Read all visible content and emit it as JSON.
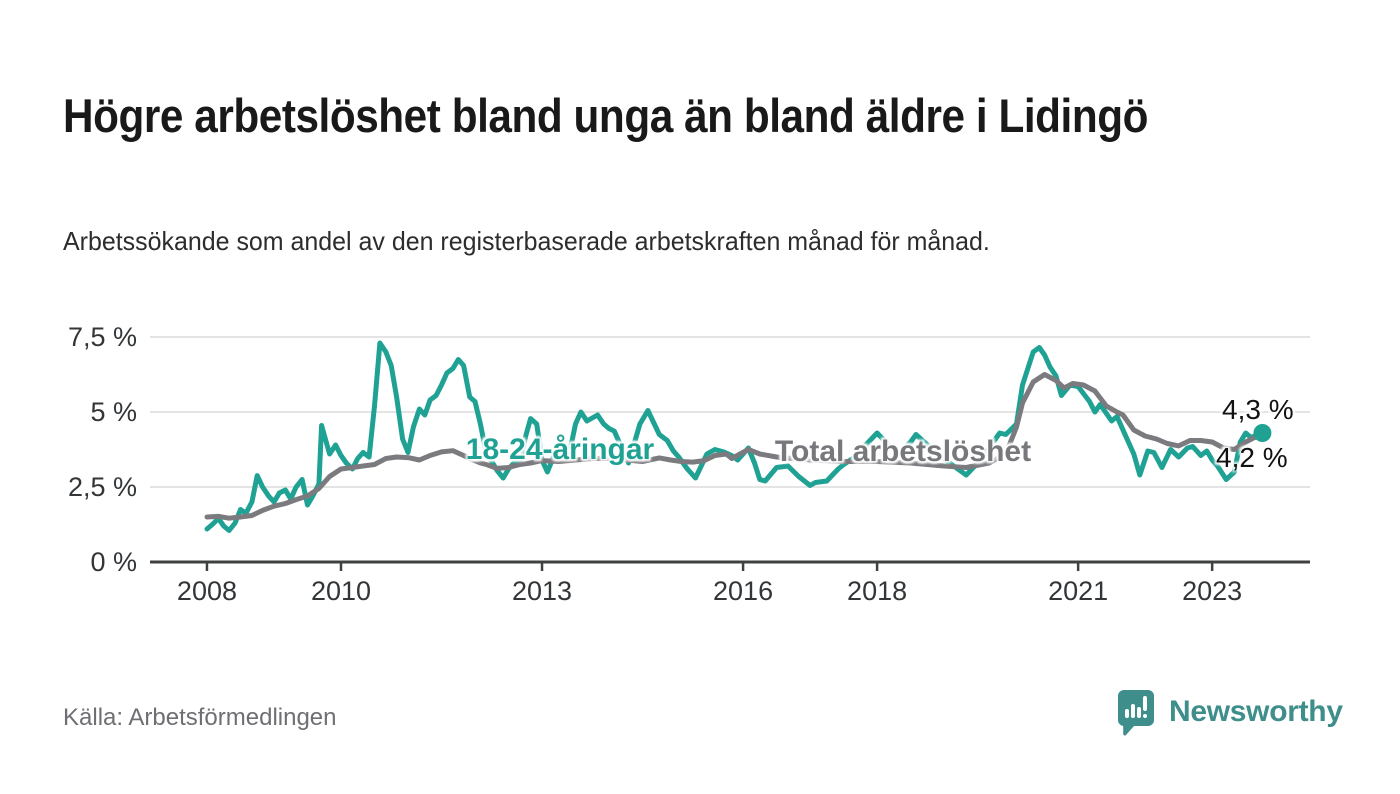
{
  "header": {
    "title": "Högre arbetslöshet bland unga än bland äldre i Lidingö",
    "subtitle": "Arbetssökande som andel av den registerbaserade arbetskraften månad för månad."
  },
  "chart_data": {
    "type": "line",
    "x_unit": "decimal_year",
    "xlim": [
      2007.15,
      2024.46
    ],
    "ylim": [
      0,
      7.5
    ],
    "grid": true,
    "legend_position": "inline-labels",
    "y_ticks": [
      {
        "v": 0,
        "label": "0 %"
      },
      {
        "v": 2.5,
        "label": "2,5 %"
      },
      {
        "v": 5,
        "label": "5 %"
      },
      {
        "v": 7.5,
        "label": "7,5 %"
      }
    ],
    "x_ticks": [
      {
        "v": 2008,
        "label": "2008"
      },
      {
        "v": 2010,
        "label": "2010"
      },
      {
        "v": 2013,
        "label": "2013"
      },
      {
        "v": 2016,
        "label": "2016"
      },
      {
        "v": 2018,
        "label": "2018"
      },
      {
        "v": 2021,
        "label": "2021"
      },
      {
        "v": 2023,
        "label": "2023"
      }
    ],
    "series": [
      {
        "name": "18-24-åringar",
        "label": "18-24-åringar",
        "color": "#1fa294",
        "end_label": "4,3 %",
        "end_value": 4.3,
        "points": [
          [
            2008.0,
            1.1
          ],
          [
            2008.08,
            1.25
          ],
          [
            2008.17,
            1.45
          ],
          [
            2008.25,
            1.2
          ],
          [
            2008.33,
            1.05
          ],
          [
            2008.42,
            1.3
          ],
          [
            2008.5,
            1.75
          ],
          [
            2008.58,
            1.62
          ],
          [
            2008.67,
            2.0
          ],
          [
            2008.75,
            2.88
          ],
          [
            2008.83,
            2.5
          ],
          [
            2008.92,
            2.2
          ],
          [
            2009.0,
            2.0
          ],
          [
            2009.08,
            2.3
          ],
          [
            2009.17,
            2.4
          ],
          [
            2009.25,
            2.1
          ],
          [
            2009.33,
            2.5
          ],
          [
            2009.42,
            2.75
          ],
          [
            2009.5,
            1.9
          ],
          [
            2009.58,
            2.2
          ],
          [
            2009.67,
            2.6
          ],
          [
            2009.71,
            4.55
          ],
          [
            2009.83,
            3.6
          ],
          [
            2009.92,
            3.9
          ],
          [
            2010.0,
            3.55
          ],
          [
            2010.08,
            3.3
          ],
          [
            2010.17,
            3.1
          ],
          [
            2010.25,
            3.45
          ],
          [
            2010.33,
            3.65
          ],
          [
            2010.42,
            3.5
          ],
          [
            2010.5,
            5.2
          ],
          [
            2010.58,
            7.3
          ],
          [
            2010.67,
            7.0
          ],
          [
            2010.75,
            6.55
          ],
          [
            2010.83,
            5.5
          ],
          [
            2010.92,
            4.1
          ],
          [
            2011.0,
            3.65
          ],
          [
            2011.08,
            4.5
          ],
          [
            2011.17,
            5.1
          ],
          [
            2011.25,
            4.9
          ],
          [
            2011.33,
            5.4
          ],
          [
            2011.42,
            5.55
          ],
          [
            2011.5,
            5.9
          ],
          [
            2011.58,
            6.3
          ],
          [
            2011.67,
            6.45
          ],
          [
            2011.75,
            6.75
          ],
          [
            2011.83,
            6.55
          ],
          [
            2011.92,
            5.5
          ],
          [
            2012.0,
            5.35
          ],
          [
            2012.08,
            4.6
          ],
          [
            2012.17,
            3.6
          ],
          [
            2012.25,
            3.35
          ],
          [
            2012.33,
            3.05
          ],
          [
            2012.42,
            2.8
          ],
          [
            2012.5,
            3.1
          ],
          [
            2012.58,
            3.3
          ],
          [
            2012.67,
            3.3
          ],
          [
            2012.75,
            4.15
          ],
          [
            2012.83,
            4.78
          ],
          [
            2012.92,
            4.6
          ],
          [
            2013.0,
            3.4
          ],
          [
            2013.08,
            3.0
          ],
          [
            2013.17,
            3.5
          ],
          [
            2013.25,
            3.45
          ],
          [
            2013.33,
            3.55
          ],
          [
            2013.42,
            3.75
          ],
          [
            2013.5,
            4.6
          ],
          [
            2013.58,
            5.0
          ],
          [
            2013.67,
            4.7
          ],
          [
            2013.83,
            4.9
          ],
          [
            2013.92,
            4.6
          ],
          [
            2014.0,
            4.45
          ],
          [
            2014.08,
            4.36
          ],
          [
            2014.17,
            3.9
          ],
          [
            2014.29,
            3.3
          ],
          [
            2014.46,
            4.6
          ],
          [
            2014.58,
            5.05
          ],
          [
            2014.75,
            4.25
          ],
          [
            2014.87,
            4.05
          ],
          [
            2014.96,
            3.7
          ],
          [
            2015.04,
            3.5
          ],
          [
            2015.17,
            3.1
          ],
          [
            2015.29,
            2.8
          ],
          [
            2015.46,
            3.6
          ],
          [
            2015.58,
            3.75
          ],
          [
            2015.71,
            3.67
          ],
          [
            2015.83,
            3.55
          ],
          [
            2015.92,
            3.4
          ],
          [
            2016.08,
            3.8
          ],
          [
            2016.17,
            3.3
          ],
          [
            2016.25,
            2.75
          ],
          [
            2016.33,
            2.7
          ],
          [
            2016.5,
            3.15
          ],
          [
            2016.67,
            3.2
          ],
          [
            2016.83,
            2.85
          ],
          [
            2017.0,
            2.55
          ],
          [
            2017.08,
            2.65
          ],
          [
            2017.25,
            2.7
          ],
          [
            2017.42,
            3.1
          ],
          [
            2017.5,
            3.25
          ],
          [
            2017.67,
            3.5
          ],
          [
            2017.83,
            3.9
          ],
          [
            2018.0,
            4.3
          ],
          [
            2018.17,
            3.9
          ],
          [
            2018.33,
            3.6
          ],
          [
            2018.5,
            4.0
          ],
          [
            2018.58,
            4.25
          ],
          [
            2018.75,
            3.9
          ],
          [
            2018.92,
            3.6
          ],
          [
            2019.08,
            3.3
          ],
          [
            2019.33,
            2.9
          ],
          [
            2019.5,
            3.3
          ],
          [
            2019.67,
            3.8
          ],
          [
            2019.83,
            4.3
          ],
          [
            2019.92,
            4.25
          ],
          [
            2020.08,
            4.6
          ],
          [
            2020.17,
            5.9
          ],
          [
            2020.33,
            7.0
          ],
          [
            2020.42,
            7.15
          ],
          [
            2020.5,
            6.9
          ],
          [
            2020.58,
            6.5
          ],
          [
            2020.67,
            6.2
          ],
          [
            2020.75,
            5.55
          ],
          [
            2020.88,
            5.9
          ],
          [
            2021.0,
            5.85
          ],
          [
            2021.17,
            5.35
          ],
          [
            2021.25,
            5.0
          ],
          [
            2021.33,
            5.25
          ],
          [
            2021.5,
            4.7
          ],
          [
            2021.58,
            4.85
          ],
          [
            2021.7,
            4.25
          ],
          [
            2021.83,
            3.6
          ],
          [
            2021.92,
            2.9
          ],
          [
            2022.04,
            3.7
          ],
          [
            2022.13,
            3.65
          ],
          [
            2022.25,
            3.15
          ],
          [
            2022.38,
            3.75
          ],
          [
            2022.5,
            3.5
          ],
          [
            2022.63,
            3.8
          ],
          [
            2022.71,
            3.85
          ],
          [
            2022.83,
            3.55
          ],
          [
            2022.92,
            3.7
          ],
          [
            2023.0,
            3.4
          ],
          [
            2023.08,
            3.2
          ],
          [
            2023.21,
            2.75
          ],
          [
            2023.33,
            3.0
          ],
          [
            2023.42,
            4.0
          ],
          [
            2023.5,
            4.3
          ],
          [
            2023.58,
            4.15
          ],
          [
            2023.75,
            4.3
          ]
        ]
      },
      {
        "name": "Total arbetslöshet",
        "label": "Total arbetslöshet",
        "color": "#7b7b7f",
        "end_label": "4,2 %",
        "end_value": 4.2,
        "points": [
          [
            2008.0,
            1.5
          ],
          [
            2008.17,
            1.52
          ],
          [
            2008.33,
            1.46
          ],
          [
            2008.5,
            1.5
          ],
          [
            2008.67,
            1.55
          ],
          [
            2008.83,
            1.72
          ],
          [
            2009.0,
            1.86
          ],
          [
            2009.17,
            1.95
          ],
          [
            2009.33,
            2.08
          ],
          [
            2009.5,
            2.2
          ],
          [
            2009.67,
            2.45
          ],
          [
            2009.83,
            2.85
          ],
          [
            2010.0,
            3.1
          ],
          [
            2010.17,
            3.15
          ],
          [
            2010.33,
            3.2
          ],
          [
            2010.5,
            3.25
          ],
          [
            2010.67,
            3.45
          ],
          [
            2010.83,
            3.5
          ],
          [
            2011.0,
            3.48
          ],
          [
            2011.17,
            3.4
          ],
          [
            2011.33,
            3.55
          ],
          [
            2011.5,
            3.67
          ],
          [
            2011.67,
            3.71
          ],
          [
            2011.83,
            3.55
          ],
          [
            2011.92,
            3.45
          ],
          [
            2012.08,
            3.3
          ],
          [
            2012.17,
            3.25
          ],
          [
            2012.33,
            3.12
          ],
          [
            2012.5,
            3.15
          ],
          [
            2012.67,
            3.25
          ],
          [
            2012.83,
            3.3
          ],
          [
            2013.0,
            3.38
          ],
          [
            2013.25,
            3.35
          ],
          [
            2013.5,
            3.4
          ],
          [
            2013.75,
            3.45
          ],
          [
            2014.0,
            3.45
          ],
          [
            2014.25,
            3.4
          ],
          [
            2014.5,
            3.35
          ],
          [
            2014.75,
            3.47
          ],
          [
            2014.92,
            3.4
          ],
          [
            2015.08,
            3.35
          ],
          [
            2015.25,
            3.33
          ],
          [
            2015.42,
            3.38
          ],
          [
            2015.58,
            3.55
          ],
          [
            2015.75,
            3.6
          ],
          [
            2015.83,
            3.45
          ],
          [
            2016.08,
            3.75
          ],
          [
            2016.25,
            3.6
          ],
          [
            2016.5,
            3.5
          ],
          [
            2016.75,
            3.45
          ],
          [
            2017.0,
            3.4
          ],
          [
            2017.5,
            3.35
          ],
          [
            2018.0,
            3.35
          ],
          [
            2018.5,
            3.3
          ],
          [
            2019.0,
            3.2
          ],
          [
            2019.33,
            3.15
          ],
          [
            2019.67,
            3.3
          ],
          [
            2019.92,
            3.6
          ],
          [
            2020.08,
            4.5
          ],
          [
            2020.17,
            5.3
          ],
          [
            2020.33,
            6.0
          ],
          [
            2020.5,
            6.25
          ],
          [
            2020.67,
            6.05
          ],
          [
            2020.79,
            5.8
          ],
          [
            2020.92,
            5.95
          ],
          [
            2021.08,
            5.9
          ],
          [
            2021.25,
            5.7
          ],
          [
            2021.42,
            5.2
          ],
          [
            2021.58,
            5.0
          ],
          [
            2021.67,
            4.9
          ],
          [
            2021.83,
            4.4
          ],
          [
            2022.0,
            4.2
          ],
          [
            2022.17,
            4.1
          ],
          [
            2022.33,
            3.95
          ],
          [
            2022.5,
            3.87
          ],
          [
            2022.67,
            4.05
          ],
          [
            2022.83,
            4.05
          ],
          [
            2023.0,
            4.0
          ],
          [
            2023.17,
            3.8
          ],
          [
            2023.33,
            3.75
          ],
          [
            2023.5,
            4.0
          ],
          [
            2023.63,
            4.15
          ],
          [
            2023.78,
            4.2
          ]
        ]
      }
    ]
  },
  "footer": {
    "source": "Källa: Arbetsförmedlingen",
    "brand": "Newsworthy"
  },
  "colors": {
    "teal": "#1fa294",
    "gray": "#7b7b7f",
    "brand_teal": "#3e8e8c",
    "grid": "#dcdcdc",
    "axis": "#3f4042",
    "tick_text": "#333639",
    "title_text": "#191919",
    "source_text": "#6e6f73"
  }
}
